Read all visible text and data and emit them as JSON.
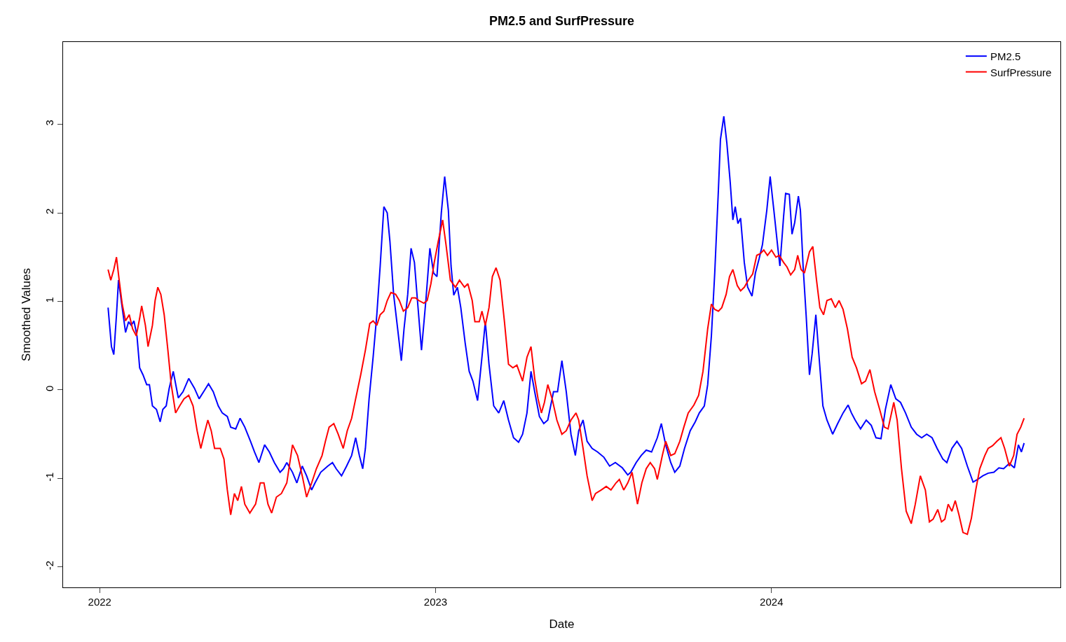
{
  "chart_data": {
    "type": "line",
    "title": "PM2.5 and SurfPressure",
    "xlabel": "Date",
    "ylabel": "Smoothed Values",
    "xlim": [
      2021.891,
      2024.86
    ],
    "xticks": [
      2022,
      2023,
      2024
    ],
    "ylim": [
      -2.23,
      3.93
    ],
    "yticks": [
      -2,
      -1,
      0,
      1,
      2,
      3
    ],
    "legend": "top right",
    "line_style": "solid",
    "marker": "none",
    "series": [
      {
        "name": "PM2.5",
        "color": "#0000ff",
        "x": [
          2022.025,
          2022.035,
          2022.042,
          2022.05,
          2022.056,
          2022.067,
          2022.077,
          2022.086,
          2022.094,
          2022.102,
          2022.111,
          2022.119,
          2022.129,
          2022.14,
          2022.148,
          2022.157,
          2022.169,
          2022.18,
          2022.188,
          2022.198,
          2022.207,
          2022.219,
          2022.234,
          2022.248,
          2022.265,
          2022.282,
          2022.296,
          2022.311,
          2022.324,
          2022.338,
          2022.353,
          2022.365,
          2022.38,
          2022.39,
          2022.405,
          2022.418,
          2022.432,
          2022.449,
          2022.461,
          2022.474,
          2022.491,
          2022.505,
          2022.52,
          2022.537,
          2022.547,
          2022.557,
          2022.574,
          2022.587,
          2022.603,
          2022.616,
          2022.631,
          2022.641,
          2022.658,
          2022.679,
          2022.693,
          2022.704,
          2022.72,
          2022.735,
          2022.75,
          2022.762,
          2022.773,
          2022.783,
          2022.791,
          2022.802,
          2022.814,
          2022.825,
          2022.835,
          2022.846,
          2022.856,
          2022.864,
          2022.875,
          2022.887,
          2022.898,
          2022.906,
          2022.917,
          2022.927,
          2022.937,
          2022.946,
          2022.958,
          2022.971,
          2022.983,
          2022.994,
          2023.004,
          2023.017,
          2023.027,
          2023.038,
          2023.046,
          2023.054,
          2023.065,
          2023.075,
          2023.088,
          2023.1,
          2023.111,
          2023.125,
          2023.138,
          2023.148,
          2023.159,
          2023.173,
          2023.188,
          2023.203,
          2023.217,
          2023.232,
          2023.247,
          2023.259,
          2023.272,
          2023.284,
          2023.295,
          2023.309,
          2023.322,
          2023.334,
          2023.351,
          2023.363,
          2023.376,
          2023.389,
          2023.403,
          2023.416,
          2023.426,
          2023.439,
          2023.451,
          2023.466,
          2023.482,
          2023.501,
          2023.518,
          2023.535,
          2023.556,
          2023.572,
          2023.581,
          2023.597,
          2023.612,
          2023.627,
          2023.643,
          2023.66,
          2023.672,
          2023.685,
          2023.7,
          2023.712,
          2023.727,
          2023.741,
          2023.758,
          2023.773,
          2023.785,
          2023.8,
          2023.81,
          2023.821,
          2023.831,
          2023.842,
          2023.848,
          2023.858,
          2023.867,
          2023.877,
          2023.885,
          2023.892,
          2023.9,
          2023.908,
          2023.919,
          2023.929,
          2023.942,
          2023.952,
          2023.963,
          2023.973,
          2023.986,
          2023.996,
          2024.007,
          2024.019,
          2024.025,
          2024.036,
          2024.042,
          2024.053,
          2024.061,
          2024.069,
          2024.08,
          2024.086,
          2024.094,
          2024.103,
          2024.113,
          2024.121,
          2024.132,
          2024.14,
          2024.153,
          2024.165,
          2024.182,
          2024.197,
          2024.213,
          2024.228,
          2024.238,
          2024.249,
          2024.265,
          2024.282,
          2024.297,
          2024.311,
          2024.326,
          2024.339,
          2024.355,
          2024.37,
          2024.384,
          2024.399,
          2024.416,
          2024.432,
          2024.447,
          2024.462,
          2024.478,
          2024.493,
          2024.51,
          2024.522,
          2024.537,
          2024.552,
          2024.566,
          2024.583,
          2024.6,
          2024.614,
          2024.629,
          2024.645,
          2024.662,
          2024.677,
          2024.691,
          2024.708,
          2024.723,
          2024.735,
          2024.744,
          2024.752
        ],
        "values": [
          0.93,
          0.49,
          0.4,
          0.85,
          1.24,
          0.93,
          0.65,
          0.77,
          0.73,
          0.78,
          0.61,
          0.25,
          0.17,
          0.06,
          0.06,
          -0.18,
          -0.22,
          -0.36,
          -0.22,
          -0.18,
          0.02,
          0.21,
          -0.09,
          -0.02,
          0.13,
          0.02,
          -0.1,
          -0.01,
          0.07,
          -0.02,
          -0.18,
          -0.26,
          -0.3,
          -0.42,
          -0.44,
          -0.32,
          -0.42,
          -0.58,
          -0.7,
          -0.82,
          -0.62,
          -0.7,
          -0.82,
          -0.93,
          -0.89,
          -0.82,
          -0.93,
          -1.05,
          -0.86,
          -0.97,
          -1.13,
          -1.05,
          -0.93,
          -0.86,
          -0.82,
          -0.89,
          -0.97,
          -0.86,
          -0.74,
          -0.54,
          -0.74,
          -0.89,
          -0.66,
          -0.1,
          0.37,
          0.85,
          1.4,
          2.07,
          2.0,
          1.68,
          1.08,
          0.69,
          0.33,
          0.69,
          1.08,
          1.6,
          1.44,
          1.01,
          0.45,
          1.01,
          1.6,
          1.32,
          1.28,
          2.0,
          2.41,
          2.03,
          1.4,
          1.07,
          1.16,
          0.93,
          0.53,
          0.21,
          0.1,
          -0.12,
          0.37,
          0.77,
          0.29,
          -0.18,
          -0.26,
          -0.12,
          -0.34,
          -0.54,
          -0.59,
          -0.5,
          -0.26,
          0.21,
          -0.02,
          -0.3,
          -0.38,
          -0.34,
          -0.02,
          -0.02,
          0.33,
          -0.02,
          -0.5,
          -0.74,
          -0.46,
          -0.34,
          -0.58,
          -0.66,
          -0.7,
          -0.76,
          -0.86,
          -0.82,
          -0.88,
          -0.96,
          -0.93,
          -0.82,
          -0.74,
          -0.68,
          -0.7,
          -0.54,
          -0.38,
          -0.62,
          -0.82,
          -0.93,
          -0.86,
          -0.66,
          -0.46,
          -0.36,
          -0.26,
          -0.18,
          0.06,
          0.61,
          1.32,
          2.27,
          2.83,
          3.09,
          2.79,
          2.35,
          1.92,
          2.07,
          1.88,
          1.94,
          1.44,
          1.16,
          1.06,
          1.32,
          1.48,
          1.64,
          2.03,
          2.41,
          2.03,
          1.6,
          1.4,
          1.96,
          2.22,
          2.21,
          1.76,
          1.89,
          2.19,
          2.03,
          1.4,
          0.85,
          0.17,
          0.41,
          0.85,
          0.45,
          -0.18,
          -0.34,
          -0.5,
          -0.38,
          -0.26,
          -0.17,
          -0.26,
          -0.34,
          -0.44,
          -0.34,
          -0.4,
          -0.54,
          -0.55,
          -0.22,
          0.06,
          -0.1,
          -0.14,
          -0.26,
          -0.42,
          -0.5,
          -0.54,
          -0.5,
          -0.54,
          -0.66,
          -0.78,
          -0.82,
          -0.66,
          -0.58,
          -0.66,
          -0.86,
          -1.04,
          -1.01,
          -0.97,
          -0.94,
          -0.93,
          -0.88,
          -0.89,
          -0.83,
          -0.88,
          -0.62,
          -0.7,
          -0.6
        ]
      },
      {
        "name": "SurfPressure",
        "color": "#ff0000",
        "x": [
          2022.025,
          2022.033,
          2022.042,
          2022.05,
          2022.058,
          2022.067,
          2022.077,
          2022.088,
          2022.098,
          2022.109,
          2022.119,
          2022.125,
          2022.136,
          2022.144,
          2022.157,
          2022.165,
          2022.173,
          2022.182,
          2022.192,
          2022.203,
          2022.213,
          2022.226,
          2022.238,
          2022.251,
          2022.265,
          2022.278,
          2022.29,
          2022.301,
          2022.311,
          2022.322,
          2022.332,
          2022.342,
          2022.359,
          2022.37,
          2022.38,
          2022.39,
          2022.401,
          2022.411,
          2022.422,
          2022.432,
          2022.447,
          2022.464,
          2022.478,
          2022.489,
          2022.501,
          2022.512,
          2022.526,
          2022.541,
          2022.557,
          2022.574,
          2022.589,
          2022.603,
          2022.616,
          2022.631,
          2022.645,
          2022.662,
          2022.672,
          2022.683,
          2022.697,
          2022.71,
          2022.725,
          2022.737,
          2022.75,
          2022.762,
          2022.777,
          2022.791,
          2022.804,
          2022.814,
          2022.825,
          2022.835,
          2022.846,
          2022.856,
          2022.867,
          2022.881,
          2022.892,
          2022.904,
          2022.917,
          2022.929,
          2022.94,
          2022.95,
          2022.965,
          2022.975,
          2022.986,
          2022.996,
          2023.008,
          2023.021,
          2023.031,
          2023.044,
          2023.059,
          2023.071,
          2023.086,
          2023.096,
          2023.109,
          2023.117,
          2023.13,
          2023.138,
          2023.148,
          2023.159,
          2023.169,
          2023.18,
          2023.192,
          2023.205,
          2023.217,
          2023.23,
          2023.242,
          2023.259,
          2023.272,
          2023.284,
          2023.295,
          2023.305,
          2023.315,
          2023.324,
          2023.334,
          2023.347,
          2023.361,
          2023.376,
          2023.389,
          2023.403,
          2023.418,
          2023.426,
          2023.439,
          2023.451,
          2023.466,
          2023.476,
          2023.493,
          2023.508,
          2023.522,
          2023.537,
          2023.547,
          2023.56,
          2023.572,
          2023.585,
          2023.601,
          2023.614,
          2023.627,
          2023.639,
          2023.652,
          2023.66,
          2023.675,
          2023.685,
          2023.7,
          2023.712,
          2023.727,
          2023.739,
          2023.752,
          2023.769,
          2023.783,
          2023.796,
          2023.81,
          2023.821,
          2023.831,
          2023.842,
          2023.852,
          2023.865,
          2023.875,
          2023.885,
          2023.898,
          2023.908,
          2023.919,
          2023.931,
          2023.944,
          2023.956,
          2023.967,
          2023.977,
          2023.988,
          2024.0,
          2024.013,
          2024.023,
          2024.036,
          2024.046,
          2024.057,
          2024.069,
          2024.078,
          2024.088,
          2024.098,
          2024.113,
          2024.123,
          2024.134,
          2024.144,
          2024.155,
          2024.165,
          2024.178,
          2024.19,
          2024.201,
          2024.213,
          2024.226,
          2024.24,
          2024.253,
          2024.268,
          2024.28,
          2024.293,
          2024.307,
          2024.322,
          2024.336,
          2024.347,
          2024.364,
          2024.374,
          2024.387,
          2024.401,
          2024.416,
          2024.428,
          2024.443,
          2024.458,
          2024.47,
          2024.481,
          2024.495,
          2024.506,
          2024.516,
          2024.526,
          2024.537,
          2024.547,
          2024.558,
          2024.57,
          2024.583,
          2024.595,
          2024.608,
          2024.62,
          2024.635,
          2024.645,
          2024.658,
          2024.671,
          2024.683,
          2024.694,
          2024.708,
          2024.721,
          2024.731,
          2024.742,
          2024.752
        ],
        "values": [
          1.36,
          1.24,
          1.36,
          1.5,
          1.24,
          0.97,
          0.78,
          0.85,
          0.69,
          0.61,
          0.81,
          0.95,
          0.73,
          0.49,
          0.73,
          1.01,
          1.16,
          1.08,
          0.85,
          0.45,
          0.06,
          -0.26,
          -0.18,
          -0.1,
          -0.06,
          -0.18,
          -0.46,
          -0.66,
          -0.5,
          -0.34,
          -0.46,
          -0.66,
          -0.66,
          -0.78,
          -1.13,
          -1.41,
          -1.17,
          -1.25,
          -1.09,
          -1.29,
          -1.39,
          -1.29,
          -1.05,
          -1.05,
          -1.29,
          -1.39,
          -1.21,
          -1.17,
          -1.05,
          -0.62,
          -0.74,
          -0.97,
          -1.21,
          -1.05,
          -0.89,
          -0.74,
          -0.58,
          -0.42,
          -0.38,
          -0.5,
          -0.66,
          -0.46,
          -0.32,
          -0.1,
          0.17,
          0.45,
          0.75,
          0.78,
          0.73,
          0.85,
          0.89,
          1.01,
          1.1,
          1.08,
          1.01,
          0.89,
          0.93,
          1.04,
          1.04,
          1.01,
          0.98,
          1.01,
          1.2,
          1.44,
          1.68,
          1.92,
          1.64,
          1.24,
          1.16,
          1.24,
          1.16,
          1.2,
          1.01,
          0.77,
          0.77,
          0.89,
          0.73,
          0.93,
          1.28,
          1.38,
          1.24,
          0.77,
          0.29,
          0.25,
          0.28,
          0.1,
          0.37,
          0.49,
          0.13,
          -0.1,
          -0.26,
          -0.14,
          0.06,
          -0.1,
          -0.34,
          -0.5,
          -0.46,
          -0.34,
          -0.26,
          -0.34,
          -0.66,
          -0.97,
          -1.25,
          -1.17,
          -1.13,
          -1.09,
          -1.13,
          -1.05,
          -1.01,
          -1.13,
          -1.05,
          -0.93,
          -1.29,
          -1.05,
          -0.89,
          -0.82,
          -0.89,
          -1.01,
          -0.74,
          -0.58,
          -0.74,
          -0.72,
          -0.58,
          -0.42,
          -0.26,
          -0.17,
          -0.06,
          0.21,
          0.69,
          0.97,
          0.91,
          0.89,
          0.93,
          1.08,
          1.28,
          1.36,
          1.18,
          1.12,
          1.16,
          1.24,
          1.31,
          1.52,
          1.54,
          1.58,
          1.52,
          1.58,
          1.5,
          1.52,
          1.44,
          1.39,
          1.3,
          1.36,
          1.52,
          1.36,
          1.32,
          1.56,
          1.62,
          1.24,
          0.93,
          0.85,
          1.01,
          1.03,
          0.93,
          1.01,
          0.91,
          0.69,
          0.37,
          0.25,
          0.07,
          0.1,
          0.23,
          -0.02,
          -0.22,
          -0.42,
          -0.44,
          -0.14,
          -0.34,
          -0.89,
          -1.37,
          -1.51,
          -1.29,
          -0.97,
          -1.13,
          -1.49,
          -1.46,
          -1.35,
          -1.49,
          -1.46,
          -1.29,
          -1.37,
          -1.25,
          -1.41,
          -1.61,
          -1.63,
          -1.45,
          -1.13,
          -0.89,
          -0.74,
          -0.66,
          -0.63,
          -0.58,
          -0.54,
          -0.66,
          -0.86,
          -0.74,
          -0.5,
          -0.42,
          -0.32
        ]
      }
    ]
  }
}
